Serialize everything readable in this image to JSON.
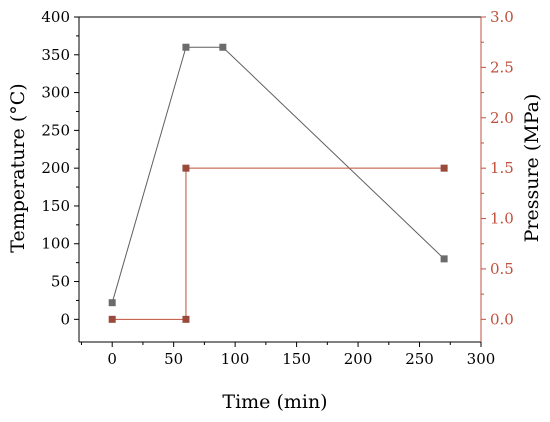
{
  "chart_data": {
    "type": "line",
    "xlabel": "Time (min)",
    "ylabel": "Temperature (°C)",
    "ylabel_right": "Pressure (MPa)",
    "xlim": [
      -27,
      300
    ],
    "ylim": [
      -30,
      400
    ],
    "ylim_right": [
      -0.225,
      3.0
    ],
    "xticks": [
      0,
      50,
      100,
      150,
      200,
      250,
      300
    ],
    "yticks": [
      0,
      50,
      100,
      150,
      200,
      250,
      300,
      350,
      400
    ],
    "yticks_right": [
      "0.0",
      "0.5",
      "1.0",
      "1.5",
      "2.0",
      "2.5",
      "3.0"
    ],
    "grid": false,
    "series": [
      {
        "axis": "left",
        "color": "#5f5f5f",
        "marker_color": "#6b6b6b",
        "x": [
          0,
          60,
          90,
          270
        ],
        "y": [
          22,
          360,
          360,
          80
        ]
      },
      {
        "axis": "right",
        "color": "#c0503c",
        "marker_color": "#9a4a3a",
        "x": [
          0,
          60,
          60,
          270
        ],
        "y": [
          0.0,
          0.0,
          1.5,
          1.5
        ]
      }
    ]
  }
}
